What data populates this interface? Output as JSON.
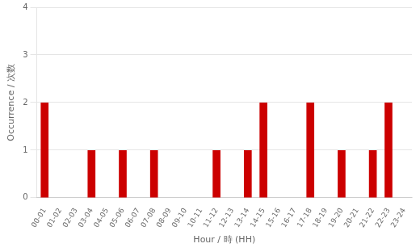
{
  "chart_data": {
    "type": "bar",
    "categories": [
      "00-01",
      "01-02",
      "02-03",
      "03-04",
      "04-05",
      "05-06",
      "06-07",
      "07-08",
      "08-09",
      "09-10",
      "10-11",
      "11-12",
      "12-13",
      "13-14",
      "14-15",
      "15-16",
      "16-17",
      "17-18",
      "18-19",
      "19-20",
      "20-21",
      "21-22",
      "22-23",
      "23-24"
    ],
    "values": [
      2,
      0,
      0,
      1,
      0,
      1,
      0,
      1,
      0,
      0,
      0,
      1,
      0,
      1,
      2,
      0,
      0,
      2,
      0,
      1,
      0,
      1,
      2,
      0
    ],
    "color": "#cc0000",
    "xlabel": "Hour / 時 (HH)",
    "ylabel": "Occurrence / 次数",
    "ylim": [
      0,
      4
    ],
    "yticks": [
      0,
      1,
      2,
      3,
      4
    ],
    "grid": "y"
  }
}
